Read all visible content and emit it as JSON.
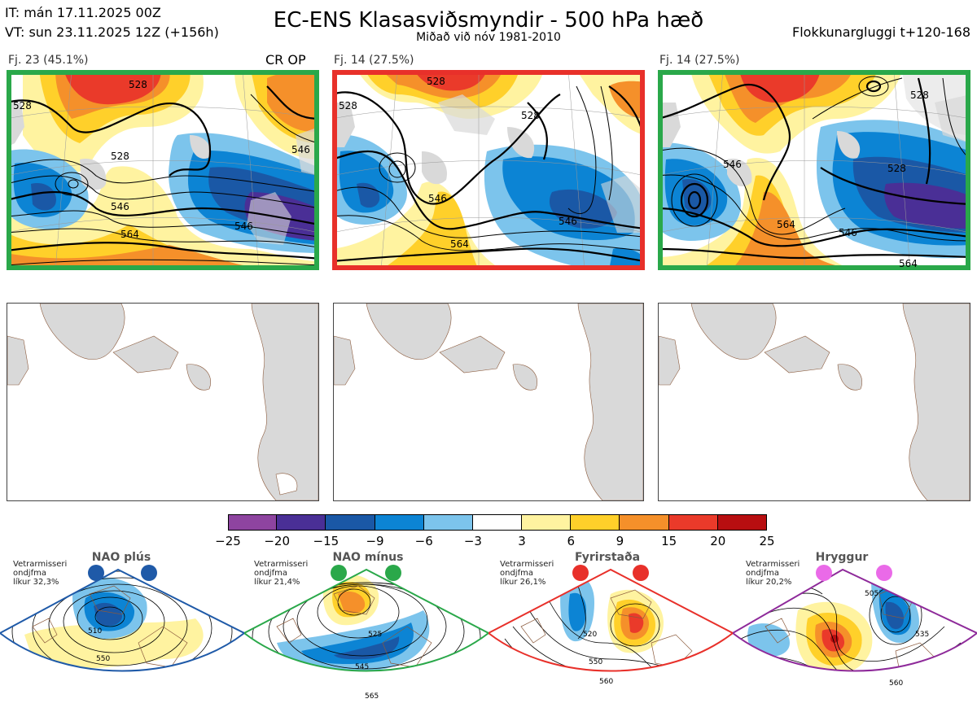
{
  "header": {
    "init_time": "IT: mán 17.11.2025 00Z",
    "valid_time": "VT: sun 23.11.2025 12Z  (+156h)",
    "title": "EC-ENS Klasasviðsmyndir - 500 hPa hæð",
    "subtitle": "Miðað við nóv 1981-2010",
    "window": "Flokkunargluggi t+120-168"
  },
  "clusters": [
    {
      "label": "Fj. 23 (45.1%)",
      "tag": "CR OP",
      "frame_color": "#2aa84a",
      "contour_labels": [
        "528",
        "528",
        "528",
        "546",
        "546",
        "546",
        "564"
      ]
    },
    {
      "label": "Fj. 14 (27.5%)",
      "tag": "",
      "frame_color": "#e8302a",
      "contour_labels": [
        "528",
        "528",
        "528",
        "546",
        "546",
        "564"
      ]
    },
    {
      "label": "Fj. 14 (27.5%)",
      "tag": "",
      "frame_color": "#2aa84a",
      "contour_labels": [
        "528",
        "546",
        "528",
        "564",
        "546",
        "564"
      ]
    }
  ],
  "colorbar": {
    "ticks": [
      "-25",
      "-20",
      "-15",
      "-9",
      "-6",
      "-3",
      "3",
      "6",
      "9",
      "15",
      "20",
      "25"
    ],
    "colors": [
      "#8e44a0",
      "#4a2f96",
      "#1a58a6",
      "#0c84d4",
      "#7cc4ec",
      "#ffffff",
      "#fff3a0",
      "#ffd02a",
      "#f5902a",
      "#ea3a2a",
      "#b80e10"
    ]
  },
  "regimes": [
    {
      "name": "NAO plús",
      "note": "Vetrarmisseri\nondjfma\nlíkur 32,3%",
      "frame_color": "#1f5aa8",
      "dot_color": "#1f5aa8",
      "contour_labels": [
        "510",
        "550"
      ]
    },
    {
      "name": "NAO mínus",
      "note": "Vetrarmisseri\nondjfma\nlíkur 21,4%",
      "frame_color": "#2aa84a",
      "dot_color": "#2aa84a",
      "contour_labels": [
        "525",
        "545",
        "565"
      ]
    },
    {
      "name": "Fyrirstaða",
      "note": "Vetrarmisseri\nondjfma\nlíkur 26,1%",
      "frame_color": "#e8302a",
      "dot_color": "#e8302a",
      "contour_labels": [
        "520",
        "550",
        "560"
      ]
    },
    {
      "name": "Hryggur",
      "note": "Vetrarmisseri\nondjfma\nlíkur 20,2%",
      "frame_color": "#8e2a9a",
      "dot_color": "#ea6ae8",
      "contour_labels": [
        "505",
        "535",
        "560"
      ]
    }
  ]
}
